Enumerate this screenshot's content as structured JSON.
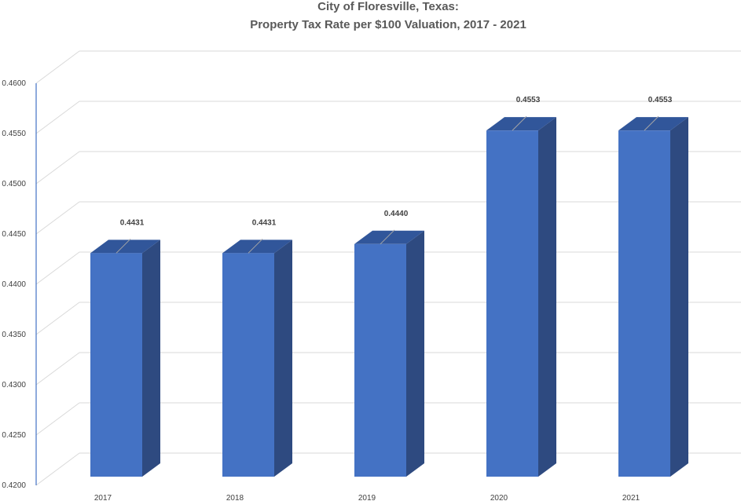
{
  "chart_data": {
    "type": "bar",
    "title": "City of Floresville, Texas:",
    "subtitle": "Property Tax Rate per $100 Valuation, 2017 - 2021",
    "categories": [
      "2017",
      "2018",
      "2019",
      "2020",
      "2021"
    ],
    "values": [
      0.4431,
      0.4431,
      0.444,
      0.4553,
      0.4553
    ],
    "data_labels": [
      "0.4431",
      "0.4431",
      "0.4440",
      "0.4553",
      "0.4553"
    ],
    "y_ticks": [
      "0.4200",
      "0.4250",
      "0.4300",
      "0.4350",
      "0.4400",
      "0.4450",
      "0.4500",
      "0.4550",
      "0.4600"
    ],
    "ylim": [
      0.42,
      0.46
    ],
    "xlabel": "",
    "ylabel": "",
    "grid": true,
    "legend": "none",
    "colors": {
      "bar_front": "#4472C4",
      "bar_side": "#2E4A80",
      "bar_top": "#31569A",
      "grid": "#D9D9D9",
      "axis": "#4472C4"
    }
  }
}
